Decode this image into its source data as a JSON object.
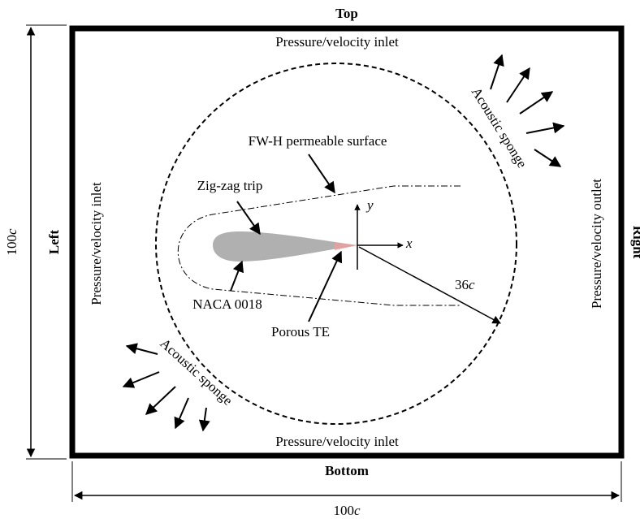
{
  "sides": {
    "top": "Top",
    "bottom": "Bottom",
    "left": "Left",
    "right": "Right"
  },
  "boundaries": {
    "top_inlet": "Pressure/velocity inlet",
    "bottom_inlet": "Pressure/velocity inlet",
    "left_inlet": "Pressure/velocity inlet",
    "right_outlet": "Pressure/velocity outlet"
  },
  "annotations": {
    "fwh_surface": "FW-H permeable surface",
    "zigzag_trip": "Zig-zag trip",
    "airfoil": "NACA 0018",
    "porous_te": "Porous TE",
    "sponge_upper": "Acoustic sponge",
    "sponge_lower": "Acoustic sponge"
  },
  "axes": {
    "x": "x",
    "y": "y"
  },
  "dimensions": {
    "radius_value": "36",
    "radius_unit": "c",
    "height_value": "100",
    "height_unit": "c",
    "width_value": "100",
    "width_unit": "c"
  },
  "colors": {
    "airfoil_fill": "#b0b0b0",
    "porous_te": "#e8a0a0",
    "lines": "#000000"
  }
}
